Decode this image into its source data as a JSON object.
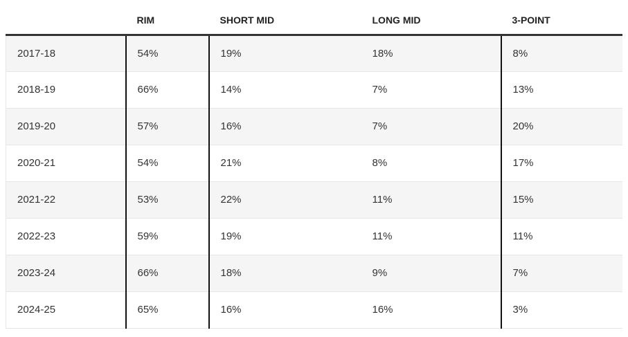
{
  "table": {
    "header": [
      "",
      "RIM",
      "SHORT MID",
      "LONG MID",
      "3-POINT"
    ],
    "rows": [
      [
        "2017-18",
        "54%",
        "19%",
        "18%",
        "8%"
      ],
      [
        "2018-19",
        "66%",
        "14%",
        "7%",
        "13%"
      ],
      [
        "2019-20",
        "57%",
        "16%",
        "7%",
        "20%"
      ],
      [
        "2020-21",
        "54%",
        "21%",
        "8%",
        "17%"
      ],
      [
        "2021-22",
        "53%",
        "22%",
        "11%",
        "15%"
      ],
      [
        "2022-23",
        "59%",
        "19%",
        "11%",
        "11%"
      ],
      [
        "2023-24",
        "66%",
        "18%",
        "9%",
        "7%"
      ],
      [
        "2024-25",
        "65%",
        "16%",
        "16%",
        "3%"
      ]
    ]
  }
}
